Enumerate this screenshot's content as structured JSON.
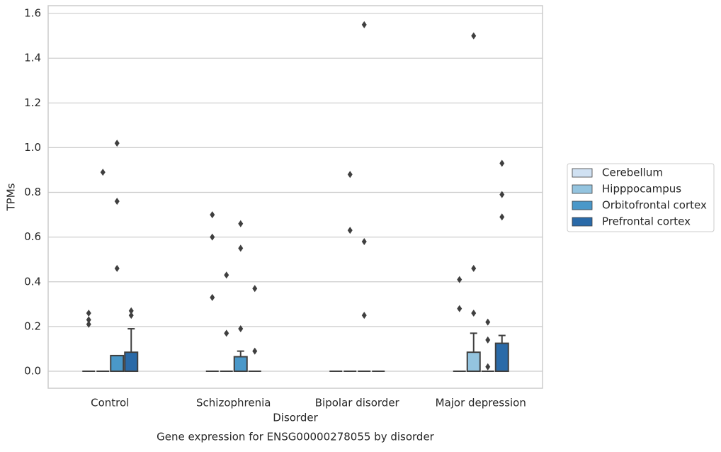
{
  "chart_data": {
    "type": "box",
    "title": "Gene expression for ENSG00000278055 by disorder",
    "xlabel": "Disorder",
    "ylabel": "TPMs",
    "categories": [
      "Control",
      "Schizophrenia",
      "Bipolar disorder",
      "Major depression"
    ],
    "ylim": [
      -0.076,
      1.635
    ],
    "yticks": [
      {
        "value": 0,
        "label": "0.0"
      },
      0.2,
      0.4,
      0.6,
      0.8,
      {
        "value": 1,
        "label": "1.0"
      },
      1.2,
      1.4,
      1.6
    ],
    "grid": true,
    "legend_position": "right",
    "series": [
      {
        "name": "Cerebellum",
        "color": "#d0e1f2",
        "boxes": [
          {
            "q1": 0,
            "median": 0,
            "q3": 0,
            "whislo": 0,
            "whishi": 0,
            "fliers": [
              0.26,
              0.23,
              0.21
            ]
          },
          {
            "q1": 0,
            "median": 0,
            "q3": 0,
            "whislo": 0,
            "whishi": 0,
            "fliers": [
              0.7,
              0.6,
              0.33
            ]
          },
          {
            "q1": 0,
            "median": 0,
            "q3": 0,
            "whislo": 0,
            "whishi": 0,
            "fliers": []
          },
          {
            "q1": 0,
            "median": 0,
            "q3": 0,
            "whislo": 0,
            "whishi": 0,
            "fliers": [
              0.41,
              0.28
            ]
          }
        ]
      },
      {
        "name": "Hipppocampus",
        "color": "#94c4df",
        "boxes": [
          {
            "q1": 0,
            "median": 0,
            "q3": 0,
            "whislo": 0,
            "whishi": 0,
            "fliers": [
              0.89
            ]
          },
          {
            "q1": 0,
            "median": 0,
            "q3": 0,
            "whislo": 0,
            "whishi": 0,
            "fliers": [
              0.43,
              0.17
            ]
          },
          {
            "q1": 0,
            "median": 0,
            "q3": 0,
            "whislo": 0,
            "whishi": 0,
            "fliers": [
              0.88,
              0.63
            ]
          },
          {
            "q1": 0,
            "median": 0,
            "q3": 0.085,
            "whislo": 0,
            "whishi": 0.17,
            "fliers": [
              1.5,
              0.46,
              0.26
            ]
          }
        ]
      },
      {
        "name": "Orbitofrontal cortex",
        "color": "#4a98c9",
        "boxes": [
          {
            "q1": 0,
            "median": 0,
            "q3": 0.07,
            "whislo": 0,
            "whishi": 0.07,
            "fliers": [
              1.02,
              0.76,
              0.46
            ]
          },
          {
            "q1": 0,
            "median": 0,
            "q3": 0.065,
            "whislo": 0,
            "whishi": 0.09,
            "fliers": [
              0.66,
              0.55,
              0.19
            ]
          },
          {
            "q1": 0,
            "median": 0,
            "q3": 0,
            "whislo": 0,
            "whishi": 0,
            "fliers": [
              1.55,
              0.58,
              0.25
            ]
          },
          {
            "q1": 0,
            "median": 0,
            "q3": 0,
            "whislo": 0,
            "whishi": 0,
            "fliers": [
              0.22,
              0.14,
              0.02
            ]
          }
        ]
      },
      {
        "name": "Prefrontal cortex",
        "color": "#2a6aa8",
        "boxes": [
          {
            "q1": 0,
            "median": 0,
            "q3": 0.085,
            "whislo": 0,
            "whishi": 0.19,
            "fliers": [
              0.27,
              0.25
            ]
          },
          {
            "q1": 0,
            "median": 0,
            "q3": 0,
            "whislo": 0,
            "whishi": 0,
            "fliers": [
              0.37,
              0.09
            ]
          },
          {
            "q1": 0,
            "median": 0,
            "q3": 0,
            "whislo": 0,
            "whishi": 0,
            "fliers": []
          },
          {
            "q1": 0,
            "median": 0,
            "q3": 0.125,
            "whislo": 0,
            "whishi": 0.16,
            "fliers": [
              0.93,
              0.79,
              0.69
            ]
          }
        ]
      }
    ]
  }
}
